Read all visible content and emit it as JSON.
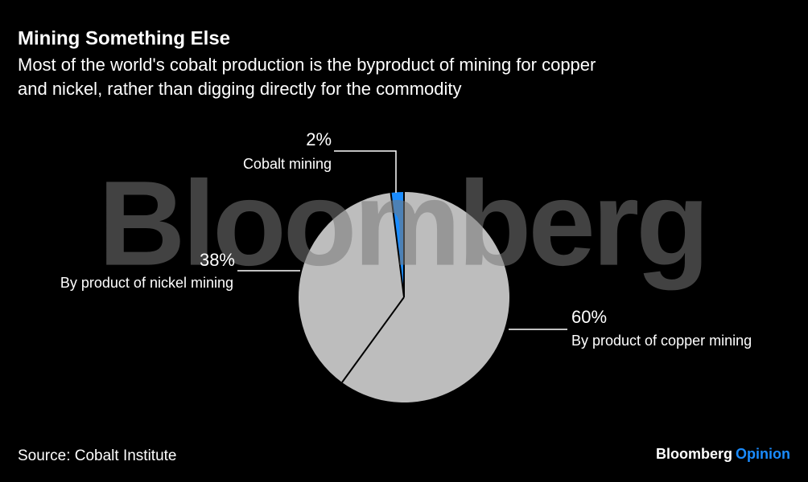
{
  "chart_data": {
    "type": "pie",
    "title": "Mining Something Else",
    "subtitle": "Most of the world's cobalt production is the byproduct of mining for copper and nickel, rather than digging directly for the commodity",
    "categories": [
      "By product of copper mining",
      "By product of nickel mining",
      "Cobalt mining"
    ],
    "values": [
      60,
      38,
      2
    ],
    "value_labels": [
      "60%",
      "38%",
      "2%"
    ],
    "colors": [
      "#bdbdbd",
      "#bdbdbd",
      "#1a8cff"
    ],
    "source": "Source: Cobalt Institute",
    "watermark": "Bloomberg",
    "brand": {
      "name": "Bloomberg",
      "section": "Opinion"
    }
  }
}
